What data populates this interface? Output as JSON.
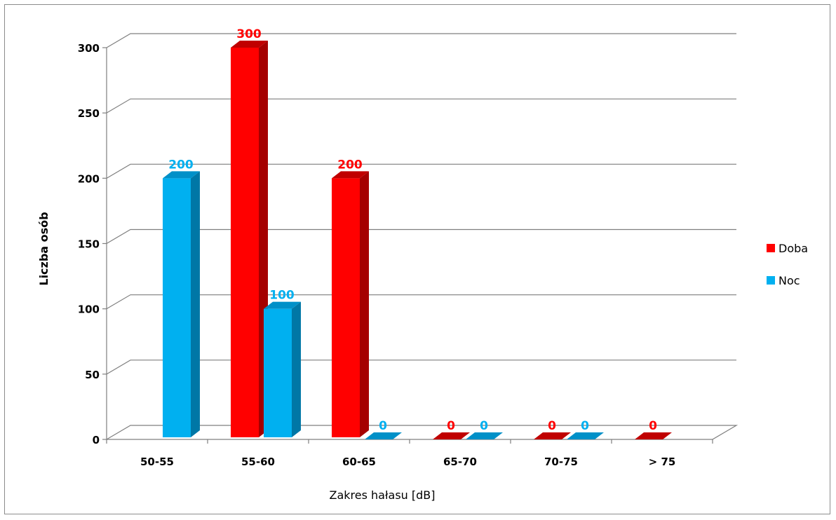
{
  "chart_data": {
    "type": "bar",
    "categories": [
      "50-55",
      "55-60",
      "60-65",
      "65-70",
      "70-75",
      "> 75"
    ],
    "series": [
      {
        "name": "Doba",
        "values": [
          null,
          300,
          200,
          0,
          0,
          0
        ],
        "color": "#ff0000",
        "side_color": "#a50000",
        "top_color": "#c00000",
        "label_color": "#ff0000"
      },
      {
        "name": "Noc",
        "values": [
          200,
          100,
          0,
          0,
          0,
          null
        ],
        "color": "#00b0f0",
        "side_color": "#0077a6",
        "top_color": "#0090c8",
        "label_color": "#00b0f0"
      }
    ],
    "xlabel": "Zakres hałasu [dB]",
    "ylabel": "Liczba osób",
    "ylim": [
      0,
      300
    ],
    "yticks": [
      0,
      50,
      100,
      150,
      200,
      250,
      300
    ],
    "grid": true,
    "legend_position": "right",
    "three_d": true
  }
}
